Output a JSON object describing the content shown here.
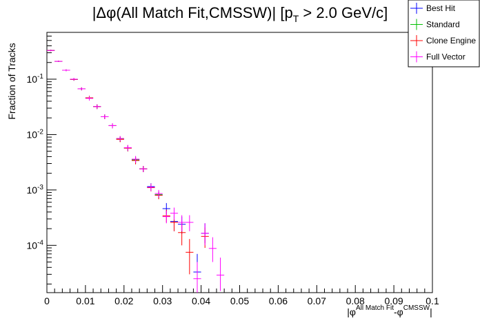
{
  "chart_data": {
    "type": "scatter",
    "title_prefix": "|Δφ(All Match Fit,CMSSW)| [p",
    "title_sub": "T",
    "title_suffix": " > 2.0 GeV/c]",
    "ylabel": "Fraction of Tracks",
    "xlabel_main": "|φ",
    "xlabel_sup1": "All Match Fit",
    "xlabel_mid": "-φ",
    "xlabel_sup2": "CMSSW",
    "xlabel_end": "|",
    "xlim": [
      0,
      0.1
    ],
    "ylim": [
      1.4e-05,
      0.7
    ],
    "yscale": "log",
    "x_ticks": [
      0,
      0.01,
      0.02,
      0.03,
      0.04,
      0.05,
      0.06,
      0.07,
      0.08,
      0.09,
      0.1
    ],
    "x_tick_labels": [
      "0",
      "0.01",
      "0.02",
      "0.03",
      "0.04",
      "0.05",
      "0.06",
      "0.07",
      "0.08",
      "0.09",
      "0.1"
    ],
    "y_ticks": [
      {
        "exp": "-1",
        "base": "10",
        "value": 0.1
      },
      {
        "exp": "-2",
        "base": "10",
        "value": 0.01
      },
      {
        "exp": "-3",
        "base": "10",
        "value": 0.001
      },
      {
        "exp": "-4",
        "base": "10",
        "value": 0.0001
      }
    ],
    "bin_width": 0.002,
    "series": [
      {
        "name": "Best Hit",
        "color": "#0000ff",
        "points": [
          {
            "x": 0.001,
            "y": 0.33,
            "ylo": 0.32,
            "yhi": 0.34
          },
          {
            "x": 0.003,
            "y": 0.21,
            "ylo": 0.205,
            "yhi": 0.215
          },
          {
            "x": 0.005,
            "y": 0.145,
            "ylo": 0.14,
            "yhi": 0.15
          },
          {
            "x": 0.007,
            "y": 0.099,
            "ylo": 0.094,
            "yhi": 0.104
          },
          {
            "x": 0.009,
            "y": 0.067,
            "ylo": 0.063,
            "yhi": 0.071
          },
          {
            "x": 0.011,
            "y": 0.046,
            "ylo": 0.042,
            "yhi": 0.05
          },
          {
            "x": 0.013,
            "y": 0.032,
            "ylo": 0.029,
            "yhi": 0.035
          },
          {
            "x": 0.015,
            "y": 0.021,
            "ylo": 0.019,
            "yhi": 0.023
          },
          {
            "x": 0.017,
            "y": 0.0145,
            "ylo": 0.013,
            "yhi": 0.016
          },
          {
            "x": 0.019,
            "y": 0.0083,
            "ylo": 0.0074,
            "yhi": 0.0092
          },
          {
            "x": 0.021,
            "y": 0.0057,
            "ylo": 0.005,
            "yhi": 0.0064
          },
          {
            "x": 0.023,
            "y": 0.0035,
            "ylo": 0.003,
            "yhi": 0.004
          },
          {
            "x": 0.025,
            "y": 0.0024,
            "ylo": 0.0021,
            "yhi": 0.0027
          },
          {
            "x": 0.027,
            "y": 0.00115,
            "ylo": 0.00098,
            "yhi": 0.00132
          },
          {
            "x": 0.029,
            "y": 0.00082,
            "ylo": 0.0007,
            "yhi": 0.00094
          },
          {
            "x": 0.031,
            "y": 0.00046,
            "ylo": 0.00036,
            "yhi": 0.00058
          },
          {
            "x": 0.033,
            "y": 0.00027,
            "ylo": 0.00018,
            "yhi": 0.00036
          },
          {
            "x": 0.035,
            "y": 0.00024,
            "ylo": 0.00016,
            "yhi": 0.00033
          },
          {
            "x": 0.039,
            "y": 3.3e-05,
            "ylo": 1.8e-05,
            "yhi": 7e-05
          },
          {
            "x": 0.041,
            "y": 0.000165,
            "ylo": 0.00011,
            "yhi": 0.00025
          }
        ]
      },
      {
        "name": "Standard",
        "color": "#00c000",
        "points": [
          {
            "x": 0.001,
            "y": 0.33,
            "ylo": 0.32,
            "yhi": 0.34
          },
          {
            "x": 0.003,
            "y": 0.21,
            "ylo": 0.205,
            "yhi": 0.215
          },
          {
            "x": 0.005,
            "y": 0.145,
            "ylo": 0.14,
            "yhi": 0.15
          },
          {
            "x": 0.007,
            "y": 0.099,
            "ylo": 0.094,
            "yhi": 0.104
          },
          {
            "x": 0.009,
            "y": 0.067,
            "ylo": 0.063,
            "yhi": 0.071
          },
          {
            "x": 0.011,
            "y": 0.046,
            "ylo": 0.042,
            "yhi": 0.05
          },
          {
            "x": 0.013,
            "y": 0.032,
            "ylo": 0.029,
            "yhi": 0.035
          },
          {
            "x": 0.015,
            "y": 0.021,
            "ylo": 0.019,
            "yhi": 0.023
          },
          {
            "x": 0.017,
            "y": 0.0145,
            "ylo": 0.013,
            "yhi": 0.016
          },
          {
            "x": 0.019,
            "y": 0.0083,
            "ylo": 0.0074,
            "yhi": 0.0092
          },
          {
            "x": 0.021,
            "y": 0.0057,
            "ylo": 0.005,
            "yhi": 0.0064
          },
          {
            "x": 0.023,
            "y": 0.0035,
            "ylo": 0.003,
            "yhi": 0.004
          },
          {
            "x": 0.025,
            "y": 0.0024,
            "ylo": 0.0021,
            "yhi": 0.0027
          },
          {
            "x": 0.027,
            "y": 0.00112,
            "ylo": 0.00096,
            "yhi": 0.0013
          },
          {
            "x": 0.029,
            "y": 0.00082,
            "ylo": 0.0007,
            "yhi": 0.00094
          }
        ]
      },
      {
        "name": "Clone Engine",
        "color": "#ff0000",
        "points": [
          {
            "x": 0.001,
            "y": 0.33,
            "ylo": 0.32,
            "yhi": 0.34
          },
          {
            "x": 0.003,
            "y": 0.21,
            "ylo": 0.205,
            "yhi": 0.215
          },
          {
            "x": 0.005,
            "y": 0.145,
            "ylo": 0.14,
            "yhi": 0.15
          },
          {
            "x": 0.007,
            "y": 0.099,
            "ylo": 0.094,
            "yhi": 0.104
          },
          {
            "x": 0.009,
            "y": 0.067,
            "ylo": 0.063,
            "yhi": 0.071
          },
          {
            "x": 0.011,
            "y": 0.046,
            "ylo": 0.042,
            "yhi": 0.05
          },
          {
            "x": 0.013,
            "y": 0.032,
            "ylo": 0.029,
            "yhi": 0.035
          },
          {
            "x": 0.015,
            "y": 0.021,
            "ylo": 0.019,
            "yhi": 0.023
          },
          {
            "x": 0.017,
            "y": 0.0145,
            "ylo": 0.013,
            "yhi": 0.016
          },
          {
            "x": 0.019,
            "y": 0.0082,
            "ylo": 0.0073,
            "yhi": 0.0091
          },
          {
            "x": 0.021,
            "y": 0.0057,
            "ylo": 0.005,
            "yhi": 0.0064
          },
          {
            "x": 0.023,
            "y": 0.0034,
            "ylo": 0.0029,
            "yhi": 0.0039
          },
          {
            "x": 0.025,
            "y": 0.0024,
            "ylo": 0.0021,
            "yhi": 0.0027
          },
          {
            "x": 0.027,
            "y": 0.0011,
            "ylo": 0.00094,
            "yhi": 0.00128
          },
          {
            "x": 0.029,
            "y": 0.0008,
            "ylo": 0.00068,
            "yhi": 0.00092
          },
          {
            "x": 0.031,
            "y": 0.00034,
            "ylo": 0.00026,
            "yhi": 0.00044
          },
          {
            "x": 0.033,
            "y": 0.00026,
            "ylo": 0.00018,
            "yhi": 0.00035
          },
          {
            "x": 0.035,
            "y": 0.00017,
            "ylo": 0.0001,
            "yhi": 0.00026
          },
          {
            "x": 0.037,
            "y": 7.5e-05,
            "ylo": 3e-05,
            "yhi": 0.00013
          },
          {
            "x": 0.041,
            "y": 0.000145,
            "ylo": 9e-05,
            "yhi": 0.00021
          }
        ]
      },
      {
        "name": "Full Vector",
        "color": "#ff00ff",
        "points": [
          {
            "x": 0.001,
            "y": 0.33,
            "ylo": 0.32,
            "yhi": 0.34
          },
          {
            "x": 0.003,
            "y": 0.21,
            "ylo": 0.205,
            "yhi": 0.215
          },
          {
            "x": 0.005,
            "y": 0.145,
            "ylo": 0.14,
            "yhi": 0.15
          },
          {
            "x": 0.007,
            "y": 0.1,
            "ylo": 0.095,
            "yhi": 0.105
          },
          {
            "x": 0.009,
            "y": 0.067,
            "ylo": 0.063,
            "yhi": 0.071
          },
          {
            "x": 0.011,
            "y": 0.045,
            "ylo": 0.041,
            "yhi": 0.049
          },
          {
            "x": 0.013,
            "y": 0.032,
            "ylo": 0.029,
            "yhi": 0.035
          },
          {
            "x": 0.015,
            "y": 0.021,
            "ylo": 0.019,
            "yhi": 0.023
          },
          {
            "x": 0.017,
            "y": 0.0145,
            "ylo": 0.013,
            "yhi": 0.016
          },
          {
            "x": 0.019,
            "y": 0.0085,
            "ylo": 0.0076,
            "yhi": 0.0094
          },
          {
            "x": 0.021,
            "y": 0.0058,
            "ylo": 0.0051,
            "yhi": 0.0065
          },
          {
            "x": 0.023,
            "y": 0.0036,
            "ylo": 0.0031,
            "yhi": 0.0041
          },
          {
            "x": 0.025,
            "y": 0.0024,
            "ylo": 0.0021,
            "yhi": 0.0027
          },
          {
            "x": 0.027,
            "y": 0.00112,
            "ylo": 0.00095,
            "yhi": 0.0013
          },
          {
            "x": 0.029,
            "y": 0.00086,
            "ylo": 0.00073,
            "yhi": 0.001
          },
          {
            "x": 0.031,
            "y": 0.00033,
            "ylo": 0.00025,
            "yhi": 0.00042
          },
          {
            "x": 0.033,
            "y": 0.00038,
            "ylo": 0.00029,
            "yhi": 0.00048
          },
          {
            "x": 0.035,
            "y": 0.00026,
            "ylo": 0.00018,
            "yhi": 0.00035
          },
          {
            "x": 0.037,
            "y": 0.00026,
            "ylo": 0.00018,
            "yhi": 0.00035
          },
          {
            "x": 0.039,
            "y": 2.5e-05,
            "ylo": 1e-05,
            "yhi": 5e-05
          },
          {
            "x": 0.041,
            "y": 0.000165,
            "ylo": 0.0001,
            "yhi": 0.00025
          },
          {
            "x": 0.043,
            "y": 8.8e-05,
            "ylo": 5e-05,
            "yhi": 0.00014
          },
          {
            "x": 0.045,
            "y": 2.9e-05,
            "ylo": 1.5e-05,
            "yhi": 6e-05
          }
        ]
      }
    ]
  }
}
